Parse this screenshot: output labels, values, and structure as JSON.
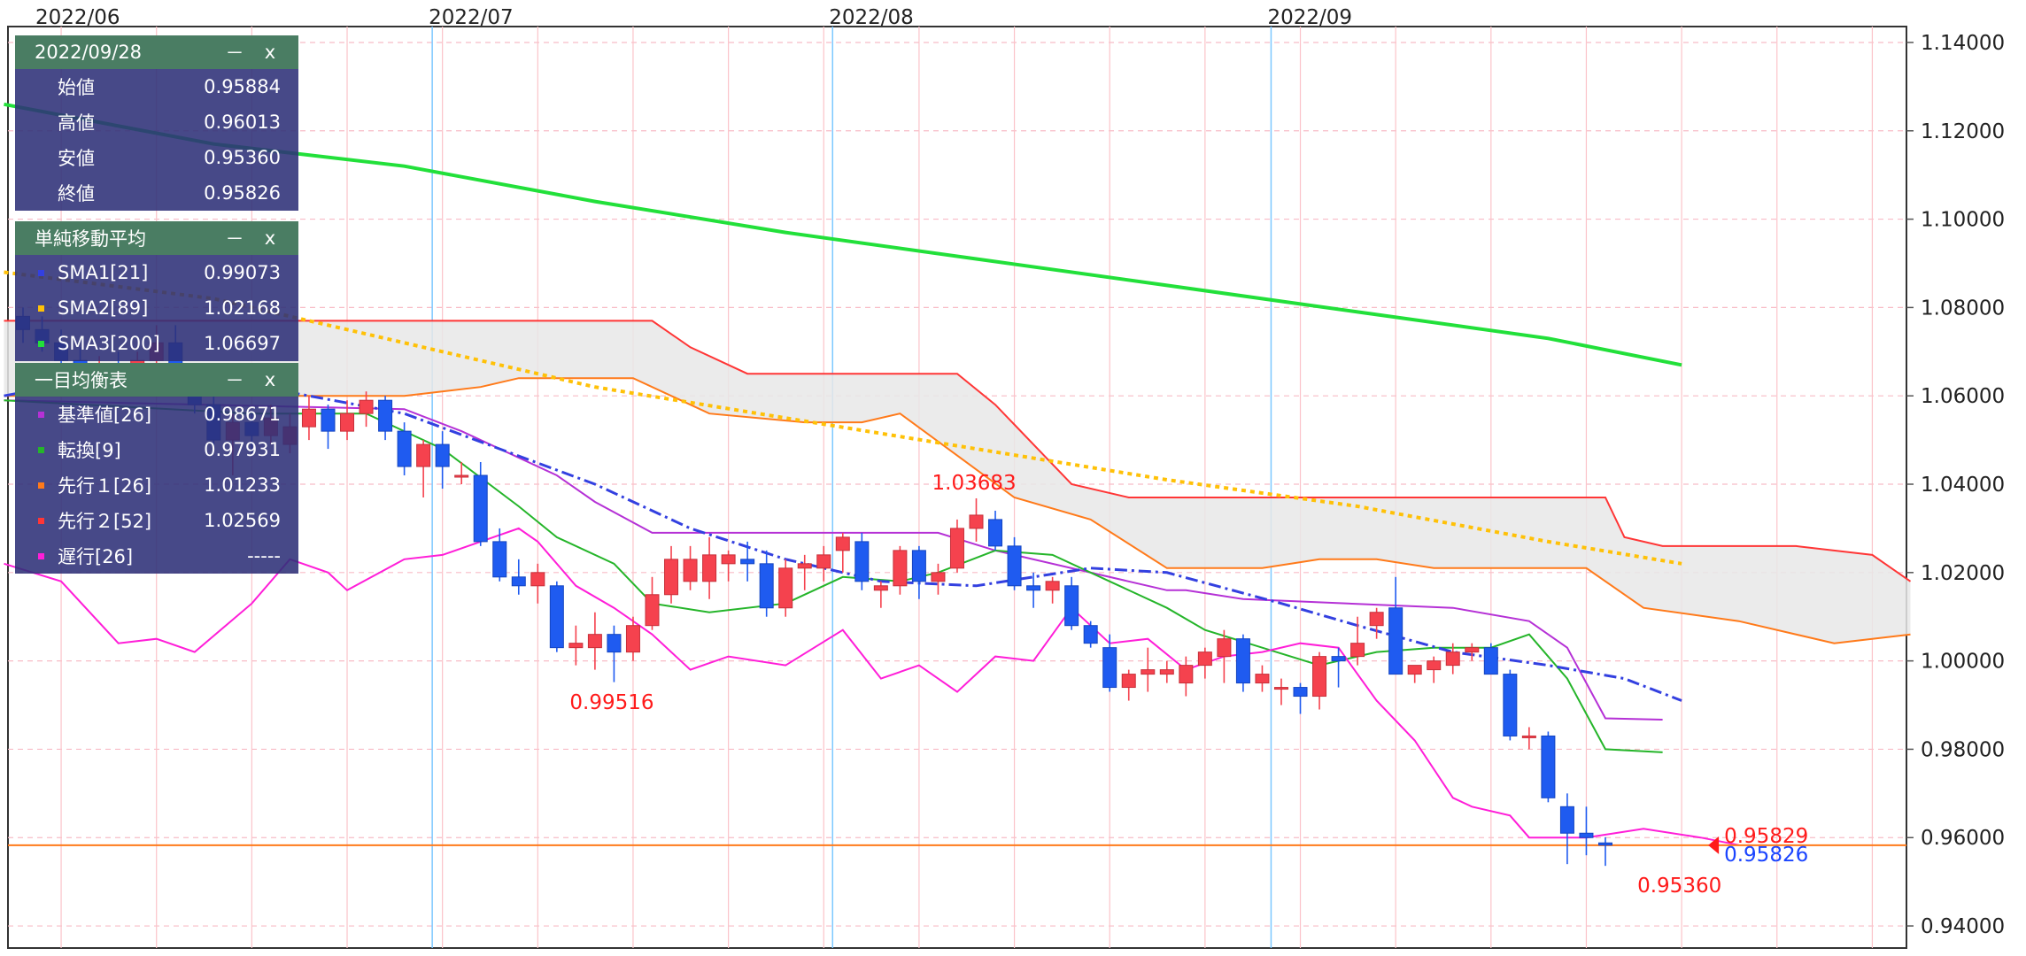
{
  "chart_data": {
    "type": "candlestick",
    "title": "",
    "xlabel": "",
    "ylabel": "",
    "ylim": [
      0.935,
      1.1436
    ],
    "y_ticks": [
      "1.14000",
      "1.12000",
      "1.10000",
      "1.08000",
      "1.06000",
      "1.04000",
      "1.02000",
      "1.00000",
      "0.98000",
      "0.96000",
      "0.94000"
    ],
    "month_labels": [
      {
        "text": "2022/06",
        "index": -1
      },
      {
        "text": "2022/07",
        "index": 21
      },
      {
        "text": "2022/08",
        "index": 42
      },
      {
        "text": "2022/09",
        "index": 65
      }
    ],
    "candles": [
      [
        1.078,
        1.08,
        1.072,
        1.075
      ],
      [
        1.075,
        1.078,
        1.07,
        1.072
      ],
      [
        1.072,
        1.075,
        1.066,
        1.068
      ],
      [
        1.068,
        1.071,
        1.062,
        1.064
      ],
      [
        1.064,
        1.069,
        1.06,
        1.066
      ],
      [
        1.066,
        1.07,
        1.06,
        1.062
      ],
      [
        1.062,
        1.07,
        1.06,
        1.068
      ],
      [
        1.068,
        1.076,
        1.064,
        1.072
      ],
      [
        1.072,
        1.076,
        1.062,
        1.065
      ],
      [
        1.065,
        1.066,
        1.056,
        1.058
      ],
      [
        1.058,
        1.06,
        1.048,
        1.05
      ],
      [
        1.05,
        1.056,
        1.042,
        1.054
      ],
      [
        1.054,
        1.056,
        1.047,
        1.051
      ],
      [
        1.051,
        1.058,
        1.049,
        1.055
      ],
      [
        1.049,
        1.056,
        1.047,
        1.053
      ],
      [
        1.053,
        1.06,
        1.05,
        1.057
      ],
      [
        1.057,
        1.058,
        1.048,
        1.052
      ],
      [
        1.052,
        1.059,
        1.05,
        1.056
      ],
      [
        1.056,
        1.061,
        1.053,
        1.059
      ],
      [
        1.059,
        1.06,
        1.05,
        1.052
      ],
      [
        1.052,
        1.054,
        1.042,
        1.044
      ],
      [
        1.044,
        1.05,
        1.037,
        1.049
      ],
      [
        1.049,
        1.052,
        1.039,
        1.044
      ],
      [
        1.042,
        1.045,
        1.04,
        1.042
      ],
      [
        1.042,
        1.045,
        1.026,
        1.027
      ],
      [
        1.027,
        1.03,
        1.018,
        1.019
      ],
      [
        1.019,
        1.023,
        1.015,
        1.017
      ],
      [
        1.017,
        1.022,
        1.013,
        1.02
      ],
      [
        1.017,
        1.018,
        1.002,
        1.003
      ],
      [
        1.003,
        1.008,
        0.999,
        1.004
      ],
      [
        1.003,
        1.011,
        0.998,
        1.006
      ],
      [
        1.006,
        1.008,
        0.9952,
        1.002
      ],
      [
        1.002,
        1.01,
        1.0,
        1.008
      ],
      [
        1.008,
        1.019,
        1.007,
        1.015
      ],
      [
        1.015,
        1.026,
        1.013,
        1.023
      ],
      [
        1.018,
        1.026,
        1.016,
        1.023
      ],
      [
        1.018,
        1.028,
        1.014,
        1.024
      ],
      [
        1.022,
        1.025,
        1.018,
        1.024
      ],
      [
        1.023,
        1.027,
        1.018,
        1.022
      ],
      [
        1.022,
        1.025,
        1.01,
        1.012
      ],
      [
        1.012,
        1.023,
        1.01,
        1.021
      ],
      [
        1.021,
        1.024,
        1.016,
        1.022
      ],
      [
        1.021,
        1.026,
        1.018,
        1.024
      ],
      [
        1.025,
        1.029,
        1.02,
        1.028
      ],
      [
        1.027,
        1.029,
        1.016,
        1.018
      ],
      [
        1.016,
        1.018,
        1.012,
        1.017
      ],
      [
        1.017,
        1.026,
        1.015,
        1.025
      ],
      [
        1.025,
        1.026,
        1.014,
        1.018
      ],
      [
        1.018,
        1.022,
        1.015,
        1.02
      ],
      [
        1.021,
        1.032,
        1.02,
        1.03
      ],
      [
        1.03,
        1.0368,
        1.027,
        1.033
      ],
      [
        1.032,
        1.034,
        1.025,
        1.026
      ],
      [
        1.026,
        1.028,
        1.016,
        1.017
      ],
      [
        1.017,
        1.02,
        1.012,
        1.016
      ],
      [
        1.016,
        1.019,
        1.013,
        1.018
      ],
      [
        1.017,
        1.019,
        1.007,
        1.008
      ],
      [
        1.008,
        1.009,
        1.003,
        1.004
      ],
      [
        1.003,
        1.006,
        0.993,
        0.994
      ],
      [
        0.994,
        0.998,
        0.991,
        0.997
      ],
      [
        0.997,
        1.003,
        0.993,
        0.998
      ],
      [
        0.997,
        1.0,
        0.995,
        0.998
      ],
      [
        0.995,
        1.001,
        0.992,
        0.999
      ],
      [
        0.999,
        1.003,
        0.996,
        1.002
      ],
      [
        1.001,
        1.007,
        0.995,
        1.005
      ],
      [
        1.005,
        1.006,
        0.993,
        0.995
      ],
      [
        0.995,
        0.999,
        0.993,
        0.997
      ],
      [
        0.994,
        0.996,
        0.99,
        0.994
      ],
      [
        0.994,
        0.995,
        0.988,
        0.992
      ],
      [
        0.992,
        1.002,
        0.989,
        1.001
      ],
      [
        1.001,
        1.003,
        0.994,
        1.0
      ],
      [
        1.001,
        1.01,
        0.999,
        1.004
      ],
      [
        1.008,
        1.012,
        1.005,
        1.011
      ],
      [
        1.012,
        1.019,
        0.998,
        0.997
      ],
      [
        0.997,
        0.999,
        0.995,
        0.999
      ],
      [
        0.998,
        1.001,
        0.995,
        1.0
      ],
      [
        0.999,
        1.004,
        0.997,
        1.002
      ],
      [
        1.002,
        1.004,
        1.0,
        1.003
      ],
      [
        1.003,
        1.004,
        0.998,
        0.997
      ],
      [
        0.997,
        0.998,
        0.982,
        0.983
      ],
      [
        0.983,
        0.985,
        0.98,
        0.983
      ],
      [
        0.983,
        0.984,
        0.968,
        0.969
      ],
      [
        0.967,
        0.97,
        0.954,
        0.961
      ],
      [
        0.961,
        0.967,
        0.956,
        0.96
      ],
      [
        0.9588,
        0.9601,
        0.9536,
        0.9583
      ]
    ],
    "sma": {
      "SMA1[21]": [
        [
          -1,
          1.06
        ],
        [
          5,
          1.065
        ],
        [
          10,
          1.064
        ],
        [
          20,
          1.056
        ],
        [
          30,
          1.04
        ],
        [
          35,
          1.03
        ],
        [
          40,
          1.023
        ],
        [
          45,
          1.018
        ],
        [
          50,
          1.017
        ],
        [
          56,
          1.021
        ],
        [
          60,
          1.02
        ],
        [
          66,
          1.013
        ],
        [
          70,
          1.008
        ],
        [
          75,
          1.002
        ],
        [
          80,
          0.999
        ],
        [
          84,
          0.996
        ],
        [
          87,
          0.991
        ]
      ],
      "SMA2[89]": [
        [
          -1,
          1.088
        ],
        [
          10,
          1.082
        ],
        [
          20,
          1.072
        ],
        [
          30,
          1.062
        ],
        [
          40,
          1.055
        ],
        [
          50,
          1.048
        ],
        [
          60,
          1.041
        ],
        [
          70,
          1.035
        ],
        [
          80,
          1.027
        ],
        [
          87,
          1.022
        ]
      ],
      "SMA3[200]": [
        [
          -1,
          1.126
        ],
        [
          10,
          1.117
        ],
        [
          20,
          1.112
        ],
        [
          30,
          1.104
        ],
        [
          40,
          1.097
        ],
        [
          50,
          1.091
        ],
        [
          60,
          1.085
        ],
        [
          70,
          1.079
        ],
        [
          80,
          1.073
        ],
        [
          87,
          1.067
        ]
      ]
    },
    "ichimoku": {
      "kijun[26]": [
        [
          -1,
          1.059
        ],
        [
          20,
          1.057
        ],
        [
          23,
          1.052
        ],
        [
          28,
          1.042
        ],
        [
          30,
          1.036
        ],
        [
          33,
          1.029
        ],
        [
          48,
          1.029
        ],
        [
          51,
          1.025
        ],
        [
          60,
          1.016
        ],
        [
          61,
          1.016
        ],
        [
          64,
          1.014
        ],
        [
          75,
          1.012
        ],
        [
          79,
          1.009
        ],
        [
          81,
          1.003
        ],
        [
          83,
          0.987
        ],
        [
          86,
          0.9867
        ]
      ],
      "tenkan[9]": [
        [
          -1,
          1.059
        ],
        [
          12,
          1.056
        ],
        [
          18,
          1.056
        ],
        [
          22,
          1.048
        ],
        [
          26,
          1.035
        ],
        [
          28,
          1.028
        ],
        [
          31,
          1.022
        ],
        [
          33,
          1.013
        ],
        [
          36,
          1.011
        ],
        [
          40,
          1.013
        ],
        [
          43,
          1.019
        ],
        [
          46,
          1.018
        ],
        [
          48,
          1.02
        ],
        [
          51,
          1.025
        ],
        [
          54,
          1.024
        ],
        [
          57,
          1.018
        ],
        [
          60,
          1.012
        ],
        [
          62,
          1.007
        ],
        [
          65,
          1.003
        ],
        [
          68,
          0.999
        ],
        [
          71,
          1.002
        ],
        [
          74,
          1.003
        ],
        [
          77,
          1.003
        ],
        [
          79,
          1.006
        ],
        [
          81,
          0.996
        ],
        [
          83,
          0.98
        ],
        [
          86,
          0.9793
        ]
      ],
      "senkou1[26]": [
        [
          -1,
          1.06
        ],
        [
          20,
          1.06
        ],
        [
          24,
          1.062
        ],
        [
          26,
          1.064
        ],
        [
          32,
          1.064
        ],
        [
          36,
          1.056
        ],
        [
          41,
          1.054
        ],
        [
          44,
          1.054
        ],
        [
          46,
          1.056
        ],
        [
          52,
          1.037
        ],
        [
          56,
          1.032
        ],
        [
          60,
          1.021
        ],
        [
          65,
          1.021
        ],
        [
          68,
          1.023
        ],
        [
          71,
          1.023
        ],
        [
          74,
          1.021
        ],
        [
          82,
          1.021
        ],
        [
          85,
          1.012
        ],
        [
          90,
          1.009
        ],
        [
          95,
          1.004
        ],
        [
          99,
          1.006
        ]
      ],
      "senkou2[52]": [
        [
          -1,
          1.077
        ],
        [
          33,
          1.077
        ],
        [
          35,
          1.071
        ],
        [
          38,
          1.065
        ],
        [
          49,
          1.065
        ],
        [
          51,
          1.058
        ],
        [
          55,
          1.04
        ],
        [
          58,
          1.037
        ],
        [
          73,
          1.037
        ],
        [
          83,
          1.037
        ],
        [
          84,
          1.028
        ],
        [
          86,
          1.026
        ],
        [
          93,
          1.026
        ],
        [
          97,
          1.024
        ],
        [
          99,
          1.018
        ]
      ],
      "chikou[26]": [
        [
          -1,
          1.022
        ],
        [
          2,
          1.018
        ],
        [
          5,
          1.004
        ],
        [
          7,
          1.005
        ],
        [
          9,
          1.002
        ],
        [
          12,
          1.013
        ],
        [
          14,
          1.023
        ],
        [
          16,
          1.02
        ],
        [
          17,
          1.016
        ],
        [
          20,
          1.023
        ],
        [
          22,
          1.024
        ],
        [
          24,
          1.027
        ],
        [
          26,
          1.03
        ],
        [
          27,
          1.027
        ],
        [
          29,
          1.017
        ],
        [
          31,
          1.012
        ],
        [
          33,
          1.006
        ],
        [
          35,
          0.998
        ],
        [
          37,
          1.001
        ],
        [
          40,
          0.999
        ],
        [
          43,
          1.007
        ],
        [
          45,
          0.996
        ],
        [
          47,
          0.999
        ],
        [
          49,
          0.993
        ],
        [
          51,
          1.001
        ],
        [
          53,
          1.0
        ],
        [
          55,
          1.012
        ],
        [
          57,
          1.004
        ],
        [
          59,
          1.005
        ],
        [
          61,
          0.998
        ],
        [
          63,
          1.001
        ],
        [
          65,
          1.002
        ],
        [
          67,
          1.004
        ],
        [
          69,
          1.003
        ],
        [
          71,
          0.991
        ],
        [
          73,
          0.982
        ],
        [
          75,
          0.969
        ],
        [
          76,
          0.967
        ],
        [
          78,
          0.965
        ],
        [
          79,
          0.96
        ],
        [
          82,
          0.96
        ],
        [
          85,
          0.962
        ],
        [
          88,
          0.96
        ],
        [
          90,
          0.9583
        ]
      ]
    },
    "annotations": [
      {
        "text": "1.03683",
        "index": 50,
        "value": 1.03683,
        "color": "#ff1a1a"
      },
      {
        "text": "0.99516",
        "index": 31,
        "value": 0.99516,
        "color": "#ff1a1a"
      },
      {
        "text": "0.95360",
        "index": 87,
        "value": 0.9536,
        "color": "#ff1a1a"
      }
    ],
    "current_price": {
      "ask": "0.95829",
      "bid": "0.95826",
      "value": 0.95826,
      "ask_color": "#ff1a1a",
      "bid_color": "#1a44ff",
      "line_color": "#ff7a1a"
    },
    "colors": {
      "up": "#f5424e",
      "down": "#1f5bf0",
      "sma1": "#3340e0",
      "sma2": "#ffc107",
      "sma3": "#22e03a",
      "kijun": "#b531d6",
      "tenkan": "#25b52a",
      "senkou1": "#ff7a1a",
      "senkou2": "#ff3636",
      "chikou": "#ff1ed8",
      "cloud": "#e8e8e8",
      "grid_h": "#f8bcc6",
      "grid_v": "#fbc3c9",
      "month_line": "#7cc8ff"
    },
    "grid": true,
    "legend_position": "top-left"
  },
  "ohlc_panel": {
    "title": "2022/09/28",
    "min_btn": "－",
    "close_btn": "x",
    "rows": [
      {
        "label": "始値",
        "value": "0.95884"
      },
      {
        "label": "高値",
        "value": "0.96013"
      },
      {
        "label": "安値",
        "value": "0.95360"
      },
      {
        "label": "終値",
        "value": "0.95826"
      }
    ]
  },
  "sma_panel": {
    "title": "単純移動平均",
    "min_btn": "－",
    "close_btn": "x",
    "rows": [
      {
        "label": "SMA1[21]",
        "value": "0.99073",
        "color": "#3340e0"
      },
      {
        "label": "SMA2[89]",
        "value": "1.02168",
        "color": "#ffc107"
      },
      {
        "label": "SMA3[200]",
        "value": "1.06697",
        "color": "#22e03a"
      }
    ]
  },
  "ichimoku_panel": {
    "title": "一目均衡表",
    "min_btn": "－",
    "close_btn": "x",
    "rows": [
      {
        "label": "基準値[26]",
        "value": "0.98671",
        "color": "#b531d6"
      },
      {
        "label": "転換[9]",
        "value": "0.97931",
        "color": "#25b52a"
      },
      {
        "label": "先行１[26]",
        "value": "1.01233",
        "color": "#ff7a1a"
      },
      {
        "label": "先行２[52]",
        "value": "1.02569",
        "color": "#ff3636"
      },
      {
        "label": "遅行[26]",
        "value": "-----",
        "color": "#ff1ed8"
      }
    ]
  }
}
